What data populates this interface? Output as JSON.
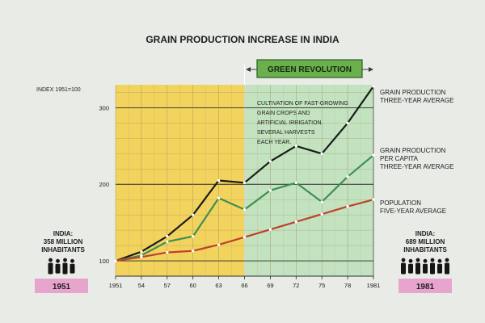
{
  "chart_data": {
    "type": "line",
    "title": "GRAIN PRODUCTION INCREASE IN INDIA",
    "ylabel": "INDEX 1951=100",
    "x": [
      1951,
      1954,
      1957,
      1960,
      1963,
      1966,
      1969,
      1972,
      1975,
      1978,
      1981
    ],
    "xtick_labels": [
      "1951",
      "54",
      "57",
      "60",
      "63",
      "66",
      "69",
      "72",
      "75",
      "78",
      "1981"
    ],
    "ylim": [
      80,
      330
    ],
    "yticks": [
      100,
      200,
      300
    ],
    "ytick_labels": [
      "100",
      "200",
      "300"
    ],
    "grid": true,
    "series": [
      {
        "name": "GRAIN PRODUCTION THREE-YEAR AVERAGE",
        "label_lines": [
          "GRAIN PRODUCTION",
          "THREE-YEAR AVERAGE"
        ],
        "color": "#1a1a1a",
        "values": [
          100,
          112,
          132,
          160,
          205,
          202,
          230,
          250,
          240,
          280,
          328
        ]
      },
      {
        "name": "GRAIN PRODUCTION PER CAPITA THREE-YEAR AVERAGE",
        "label_lines": [
          "GRAIN PRODUCTION",
          "PER CAPITA",
          "THREE-YEAR AVERAGE"
        ],
        "color": "#3e8f52",
        "values": [
          100,
          107,
          125,
          132,
          182,
          167,
          192,
          202,
          177,
          210,
          238
        ]
      },
      {
        "name": "POPULATION FIVE-YEAR AVERAGE",
        "label_lines": [
          "POPULATION",
          "FIVE-YEAR AVERAGE"
        ],
        "color": "#c0402a",
        "values": [
          100,
          105,
          111,
          113,
          121,
          131,
          141,
          151,
          161,
          171,
          180
        ]
      }
    ],
    "period_band": {
      "label": "GREEN REVOLUTION",
      "x_start": 1966,
      "x_end": 1981,
      "color_before": "#f2d35e",
      "color_during": "#c3e3c0"
    },
    "annotation": {
      "lines": [
        "CULTIVATION OF FAST-GROWING",
        "GRAIN CROPS AND",
        "ARTIFICIAL IRRIGATION.",
        "SEVERAL HARVESTS",
        "EACH YEAR."
      ]
    }
  },
  "left_panel": {
    "lines": [
      "INDIA:",
      "358 MILLION",
      "INHABITANTS"
    ],
    "people_count": 4,
    "year_label": "1951"
  },
  "right_panel": {
    "lines": [
      "INDIA:",
      "689 MILLION",
      "INHABITANTS"
    ],
    "people_count": 7,
    "year_label": "1981"
  },
  "colors": {
    "background": "#e9ebe6",
    "badge": "#e7a5cd",
    "banner": "#6ab04c",
    "gridline": "#9a8a55"
  }
}
